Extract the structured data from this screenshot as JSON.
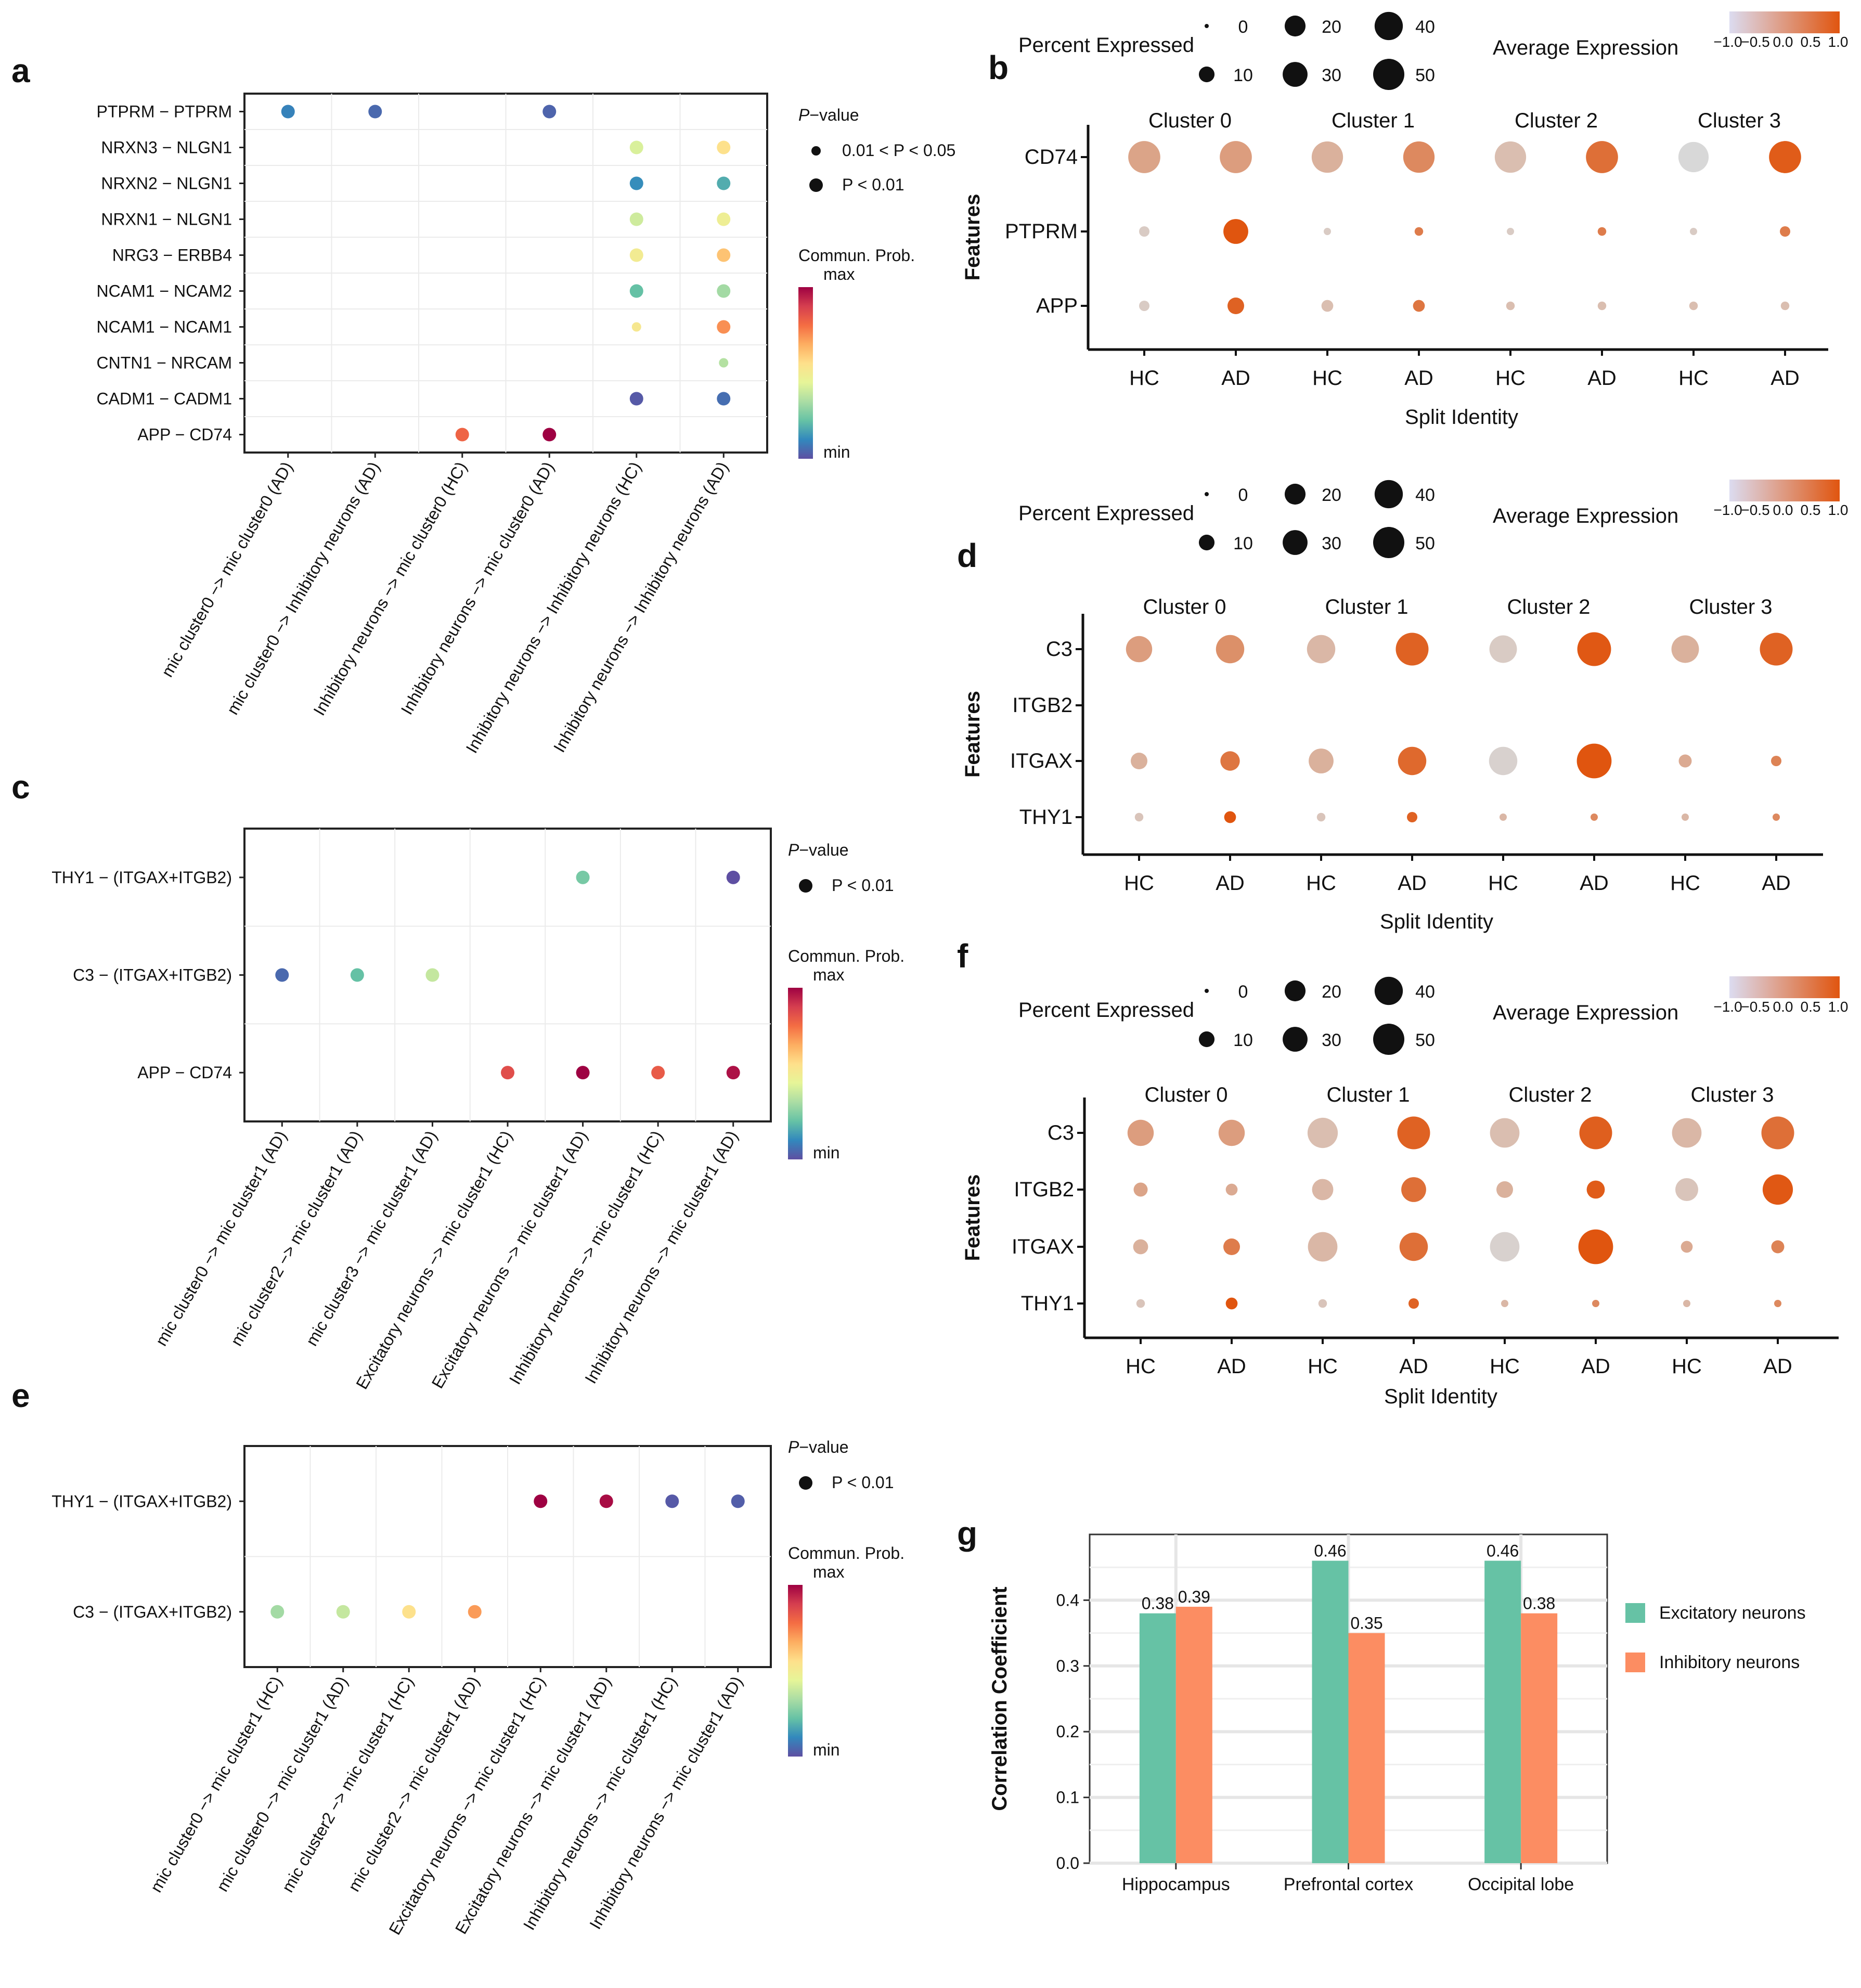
{
  "panel_labels": [
    "a",
    "b",
    "c",
    "d",
    "e",
    "f",
    "g"
  ],
  "chart_data": [
    {
      "id": "a",
      "type": "scatter",
      "subtype": "cellchat-bubble",
      "y_categories": [
        "PTPRM − PTPRM",
        "NRXN3 − NLGN1",
        "NRXN2 − NLGN1",
        "NRXN1 − NLGN1",
        "NRG3 − ERBB4",
        "NCAM1 − NCAM2",
        "NCAM1 − NCAM1",
        "CNTN1 − NRCAM",
        "CADM1 − CADM1",
        "APP − CD74"
      ],
      "x_categories": [
        "mic cluster0 −> mic cluster0 (AD)",
        "mic cluster0 −> Inhibitory neurons (AD)",
        "Inhibitory neurons −> mic cluster0 (HC)",
        "Inhibitory neurons −> mic cluster0 (AD)",
        "Inhibitory neurons −> Inhibitory neurons (HC)",
        "Inhibitory neurons −> Inhibitory neurons (AD)"
      ],
      "points": [
        {
          "y": "PTPRM − PTPRM",
          "x": "mic cluster0 −> mic cluster0 (AD)",
          "prob": 0.1,
          "p": "P < 0.01"
        },
        {
          "y": "PTPRM − PTPRM",
          "x": "mic cluster0 −> Inhibitory neurons (AD)",
          "prob": 0.05,
          "p": "P < 0.01"
        },
        {
          "y": "PTPRM − PTPRM",
          "x": "Inhibitory neurons −> mic cluster0 (AD)",
          "prob": 0.04,
          "p": "P < 0.01"
        },
        {
          "y": "NRXN3 − NLGN1",
          "x": "Inhibitory neurons −> Inhibitory neurons (HC)",
          "prob": 0.42,
          "p": "P < 0.01"
        },
        {
          "y": "NRXN3 − NLGN1",
          "x": "Inhibitory neurons −> Inhibitory neurons (AD)",
          "prob": 0.55,
          "p": "P < 0.01"
        },
        {
          "y": "NRXN2 − NLGN1",
          "x": "Inhibitory neurons −> Inhibitory neurons (HC)",
          "prob": 0.12,
          "p": "P < 0.01"
        },
        {
          "y": "NRXN2 − NLGN1",
          "x": "Inhibitory neurons −> Inhibitory neurons (AD)",
          "prob": 0.18,
          "p": "P < 0.01"
        },
        {
          "y": "NRXN1 − NLGN1",
          "x": "Inhibitory neurons −> Inhibitory neurons (HC)",
          "prob": 0.4,
          "p": "P < 0.01"
        },
        {
          "y": "NRXN1 − NLGN1",
          "x": "Inhibitory neurons −> Inhibitory neurons (AD)",
          "prob": 0.48,
          "p": "P < 0.01"
        },
        {
          "y": "NRG3 − ERBB4",
          "x": "Inhibitory neurons −> Inhibitory neurons (HC)",
          "prob": 0.5,
          "p": "P < 0.01"
        },
        {
          "y": "NRG3 − ERBB4",
          "x": "Inhibitory neurons −> Inhibitory neurons (AD)",
          "prob": 0.62,
          "p": "P < 0.01"
        },
        {
          "y": "NCAM1 − NCAM2",
          "x": "Inhibitory neurons −> Inhibitory neurons (HC)",
          "prob": 0.22,
          "p": "P < 0.01"
        },
        {
          "y": "NCAM1 − NCAM2",
          "x": "Inhibitory neurons −> Inhibitory neurons (AD)",
          "prob": 0.32,
          "p": "P < 0.01"
        },
        {
          "y": "NCAM1 − NCAM1",
          "x": "Inhibitory neurons −> Inhibitory neurons (HC)",
          "prob": 0.52,
          "p": "0.01 < P < 0.05"
        },
        {
          "y": "NCAM1 − NCAM1",
          "x": "Inhibitory neurons −> Inhibitory neurons (AD)",
          "prob": 0.72,
          "p": "P < 0.01"
        },
        {
          "y": "CNTN1 − NRCAM",
          "x": "Inhibitory neurons −> Inhibitory neurons (AD)",
          "prob": 0.35,
          "p": "0.01 < P < 0.05"
        },
        {
          "y": "CADM1 − CADM1",
          "x": "Inhibitory neurons −> Inhibitory neurons (HC)",
          "prob": 0.02,
          "p": "P < 0.01"
        },
        {
          "y": "CADM1 − CADM1",
          "x": "Inhibitory neurons −> Inhibitory neurons (AD)",
          "prob": 0.06,
          "p": "P < 0.01"
        },
        {
          "y": "APP − CD74",
          "x": "Inhibitory neurons −> mic cluster0 (HC)",
          "prob": 0.8,
          "p": "P < 0.01"
        },
        {
          "y": "APP − CD74",
          "x": "Inhibitory neurons −> mic cluster0 (AD)",
          "prob": 1.0,
          "p": "P < 0.01"
        }
      ],
      "legend": {
        "pvalue_title": "P−value",
        "pvalue_levels": [
          "0.01 < P < 0.05",
          "P < 0.01"
        ],
        "color_title": "Commun. Prob.",
        "color_max": "max",
        "color_min": "min"
      }
    },
    {
      "id": "b",
      "type": "scatter",
      "subtype": "seurat-dotplot",
      "y_categories": [
        "CD74",
        "PTPRM",
        "APP"
      ],
      "x_categories": [
        "HC",
        "AD",
        "HC",
        "AD",
        "HC",
        "AD",
        "HC",
        "AD"
      ],
      "cluster_labels": [
        "Cluster 0",
        "Cluster 1",
        "Cluster 2",
        "Cluster 3"
      ],
      "ylabel": "Features",
      "xlabel": "Split Identity",
      "values": {
        "CD74": {
          "pct": [
            40,
            40,
            38,
            38,
            38,
            40,
            35,
            40
          ],
          "avg": [
            -0.2,
            -0.1,
            -0.4,
            0.2,
            -0.6,
            0.6,
            -1.0,
            0.9
          ]
        },
        "PTPRM": {
          "pct": [
            2,
            22,
            0.5,
            1,
            0.5,
            1,
            0.5,
            2
          ],
          "avg": [
            -0.8,
            1.0,
            -0.8,
            0.4,
            -0.8,
            0.4,
            -0.8,
            0.4
          ]
        },
        "APP": {
          "pct": [
            2,
            8,
            3,
            3,
            1,
            1,
            1,
            1
          ],
          "avg": [
            -0.8,
            0.8,
            -0.6,
            0.5,
            -0.6,
            -0.6,
            -0.6,
            -0.6
          ]
        }
      },
      "size_legend": {
        "title": "Percent Expressed",
        "levels": [
          0,
          10,
          20,
          30,
          40,
          50
        ]
      },
      "color_legend": {
        "title": "Average Expression",
        "ticks": [
          "−1.0",
          "−0.5",
          "0.0",
          "0.5",
          "1.0"
        ]
      }
    },
    {
      "id": "c",
      "type": "scatter",
      "subtype": "cellchat-bubble",
      "y_categories": [
        "THY1 − (ITGAX+ITGB2)",
        "C3 − (ITGAX+ITGB2)",
        "APP − CD74"
      ],
      "x_categories": [
        "mic cluster0 −> mic cluster1 (AD)",
        "mic cluster2 −> mic cluster1 (AD)",
        "mic cluster3 −> mic cluster1 (AD)",
        "Excitatory neurons −> mic cluster1 (HC)",
        "Excitatory neurons −> mic cluster1 (AD)",
        "Inhibitory neurons −> mic cluster1 (HC)",
        "Inhibitory neurons −> mic cluster1 (AD)"
      ],
      "points": [
        {
          "y": "THY1 − (ITGAX+ITGB2)",
          "x": "Excitatory neurons −> mic cluster1 (AD)",
          "prob": 0.25,
          "p": "P < 0.01"
        },
        {
          "y": "THY1 − (ITGAX+ITGB2)",
          "x": "Inhibitory neurons −> mic cluster1 (AD)",
          "prob": 0.0,
          "p": "P < 0.01"
        },
        {
          "y": "C3 − (ITGAX+ITGB2)",
          "x": "mic cluster0 −> mic cluster1 (AD)",
          "prob": 0.05,
          "p": "P < 0.01"
        },
        {
          "y": "C3 − (ITGAX+ITGB2)",
          "x": "mic cluster2 −> mic cluster1 (AD)",
          "prob": 0.22,
          "p": "P < 0.01"
        },
        {
          "y": "C3 − (ITGAX+ITGB2)",
          "x": "mic cluster3 −> mic cluster1 (AD)",
          "prob": 0.38,
          "p": "P < 0.01"
        },
        {
          "y": "APP − CD74",
          "x": "Excitatory neurons −> mic cluster1 (HC)",
          "prob": 0.85,
          "p": "P < 0.01"
        },
        {
          "y": "APP − CD74",
          "x": "Excitatory neurons −> mic cluster1 (AD)",
          "prob": 1.0,
          "p": "P < 0.01"
        },
        {
          "y": "APP − CD74",
          "x": "Inhibitory neurons −> mic cluster1 (HC)",
          "prob": 0.82,
          "p": "P < 0.01"
        },
        {
          "y": "APP − CD74",
          "x": "Inhibitory neurons −> mic cluster1 (AD)",
          "prob": 0.97,
          "p": "P < 0.01"
        }
      ],
      "legend": {
        "pvalue_title": "P−value",
        "pvalue_levels": [
          "P < 0.01"
        ],
        "color_title": "Commun. Prob.",
        "color_max": "max",
        "color_min": "min"
      }
    },
    {
      "id": "d",
      "type": "scatter",
      "subtype": "seurat-dotplot",
      "y_categories": [
        "C3",
        "ITGB2",
        "ITGAX",
        "THY1"
      ],
      "x_categories": [
        "HC",
        "AD",
        "HC",
        "AD",
        "HC",
        "AD",
        "HC",
        "AD"
      ],
      "cluster_labels": [
        "Cluster 0",
        "Cluster 1",
        "Cluster 2",
        "Cluster 3"
      ],
      "ylabel": "Features",
      "xlabel": "Split Identity",
      "values": {
        "C3": {
          "pct": [
            25,
            30,
            30,
            42,
            28,
            45,
            28,
            42
          ],
          "avg": [
            -0.1,
            0.1,
            -0.5,
            0.8,
            -0.8,
            0.95,
            -0.4,
            0.8
          ]
        },
        "ITGB2": {
          "pct": [
            0,
            0,
            0,
            0,
            0,
            0,
            0,
            0
          ],
          "avg": [
            0,
            0,
            0,
            0,
            0,
            0,
            0,
            0
          ]
        },
        "ITGAX": {
          "pct": [
            8,
            12,
            22,
            30,
            30,
            48,
            4,
            2
          ],
          "avg": [
            -0.4,
            0.5,
            -0.4,
            0.7,
            -0.9,
            1.0,
            -0.3,
            0.3
          ]
        },
        "THY1": {
          "pct": [
            1,
            3,
            1,
            2,
            0.5,
            0.5,
            0.5,
            0.5
          ],
          "avg": [
            -0.7,
            1.0,
            -0.7,
            0.8,
            -0.5,
            0.2,
            -0.5,
            0.2
          ]
        }
      },
      "size_legend": {
        "title": "Percent Expressed",
        "levels": [
          0,
          10,
          20,
          30,
          40,
          50
        ]
      },
      "color_legend": {
        "title": "Average Expression",
        "ticks": [
          "−1.0",
          "−0.5",
          "0.0",
          "0.5",
          "1.0"
        ]
      }
    },
    {
      "id": "e",
      "type": "scatter",
      "subtype": "cellchat-bubble",
      "y_categories": [
        "THY1 − (ITGAX+ITGB2)",
        "C3 − (ITGAX+ITGB2)"
      ],
      "x_categories": [
        "mic cluster0 −> mic cluster1 (HC)",
        "mic cluster0 −> mic cluster1 (AD)",
        "mic cluster2 −> mic cluster1 (HC)",
        "mic cluster2 −> mic cluster1 (AD)",
        "Excitatory neurons −> mic cluster1 (HC)",
        "Excitatory neurons −> mic cluster1 (AD)",
        "Inhibitory neurons −> mic cluster1 (HC)",
        "Inhibitory neurons −> mic cluster1 (AD)"
      ],
      "points": [
        {
          "y": "THY1 − (ITGAX+ITGB2)",
          "x": "Excitatory neurons −> mic cluster1 (HC)",
          "prob": 1.0,
          "p": "P < 0.01"
        },
        {
          "y": "THY1 − (ITGAX+ITGB2)",
          "x": "Excitatory neurons −> mic cluster1 (AD)",
          "prob": 0.98,
          "p": "P < 0.01"
        },
        {
          "y": "THY1 − (ITGAX+ITGB2)",
          "x": "Inhibitory neurons −> mic cluster1 (HC)",
          "prob": 0.02,
          "p": "P < 0.01"
        },
        {
          "y": "THY1 − (ITGAX+ITGB2)",
          "x": "Inhibitory neurons −> mic cluster1 (AD)",
          "prob": 0.03,
          "p": "P < 0.01"
        },
        {
          "y": "C3 − (ITGAX+ITGB2)",
          "x": "mic cluster0 −> mic cluster1 (HC)",
          "prob": 0.32,
          "p": "P < 0.01"
        },
        {
          "y": "C3 − (ITGAX+ITGB2)",
          "x": "mic cluster0 −> mic cluster1 (AD)",
          "prob": 0.38,
          "p": "P < 0.01"
        },
        {
          "y": "C3 − (ITGAX+ITGB2)",
          "x": "mic cluster2 −> mic cluster1 (HC)",
          "prob": 0.55,
          "p": "P < 0.01"
        },
        {
          "y": "C3 − (ITGAX+ITGB2)",
          "x": "mic cluster2 −> mic cluster1 (AD)",
          "prob": 0.7,
          "p": "P < 0.01"
        }
      ],
      "legend": {
        "pvalue_title": "P−value",
        "pvalue_levels": [
          "P < 0.01"
        ],
        "color_title": "Commun. Prob.",
        "color_max": "max",
        "color_min": "min"
      }
    },
    {
      "id": "f",
      "type": "scatter",
      "subtype": "seurat-dotplot",
      "y_categories": [
        "C3",
        "ITGB2",
        "ITGAX",
        "THY1"
      ],
      "x_categories": [
        "HC",
        "AD",
        "HC",
        "AD",
        "HC",
        "AD",
        "HC",
        "AD"
      ],
      "cluster_labels": [
        "Cluster 0",
        "Cluster 1",
        "Cluster 2",
        "Cluster 3"
      ],
      "ylabel": "Features",
      "xlabel": "Split Identity",
      "values": {
        "C3": {
          "pct": [
            25,
            25,
            35,
            42,
            33,
            42,
            33,
            42
          ],
          "avg": [
            -0.1,
            -0.1,
            -0.6,
            0.8,
            -0.6,
            0.85,
            -0.5,
            0.6
          ]
        },
        "ITGB2": {
          "pct": [
            5,
            3,
            15,
            22,
            8,
            10,
            18,
            35
          ],
          "avg": [
            -0.2,
            -0.3,
            -0.5,
            0.6,
            -0.4,
            0.9,
            -0.7,
            0.95
          ]
        },
        "ITGAX": {
          "pct": [
            6,
            8,
            33,
            30,
            33,
            48,
            3,
            4
          ],
          "avg": [
            -0.4,
            0.4,
            -0.5,
            0.6,
            -0.9,
            1.0,
            -0.3,
            0.3
          ]
        },
        "THY1": {
          "pct": [
            1,
            3,
            1,
            2,
            0.5,
            0.5,
            0.5,
            0.5
          ],
          "avg": [
            -0.7,
            1.0,
            -0.7,
            0.8,
            -0.5,
            0.2,
            -0.5,
            0.2
          ]
        }
      },
      "size_legend": {
        "title": "Percent Expressed",
        "levels": [
          0,
          10,
          20,
          30,
          40,
          50
        ]
      },
      "color_legend": {
        "title": "Average Expression",
        "ticks": [
          "−1.0",
          "−0.5",
          "0.0",
          "0.5",
          "1.0"
        ]
      }
    },
    {
      "id": "g",
      "type": "bar",
      "categories": [
        "Hippocampus",
        "Prefrontal cortex",
        "Occipital lobe"
      ],
      "series": [
        {
          "name": "Excitatory neurons",
          "color": "#66c2a5",
          "values": [
            0.38,
            0.46,
            0.46
          ]
        },
        {
          "name": "Inhibitory neurons",
          "color": "#fc8d62",
          "values": [
            0.39,
            0.35,
            0.38
          ]
        }
      ],
      "ylabel": "Correlation Coefficient",
      "xlabel": "",
      "ylim": [
        0,
        0.5
      ],
      "yticks": [
        "0.0",
        "0.1",
        "0.2",
        "0.3",
        "0.4"
      ],
      "data_labels": [
        "0.38",
        "0.39",
        "0.46",
        "0.35",
        "0.46",
        "0.38"
      ]
    }
  ]
}
